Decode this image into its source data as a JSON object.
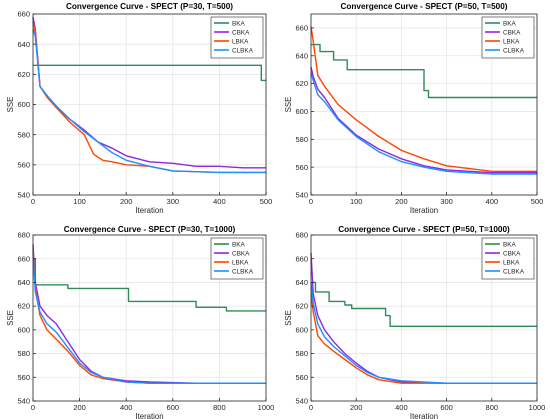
{
  "chart_data": [
    {
      "type": "line",
      "title": "Convergence Curve - SPECT (P=30, T=500)",
      "xlabel": "Iteration",
      "ylabel": "SSE",
      "xlim": [
        0,
        500
      ],
      "ylim": [
        540,
        660
      ],
      "xticks": [
        0,
        100,
        200,
        300,
        400,
        500
      ],
      "yticks": [
        540,
        560,
        580,
        600,
        620,
        640,
        660
      ],
      "grid": true,
      "legend_position": "top-right",
      "series": [
        {
          "name": "BKA",
          "color": "#2e8b57",
          "step": true,
          "x": [
            0,
            490,
            490,
            500
          ],
          "y": [
            626,
            626,
            616,
            616
          ]
        },
        {
          "name": "CBKA",
          "color": "#8a2be2",
          "step": false,
          "x": [
            0,
            5,
            15,
            30,
            50,
            80,
            110,
            140,
            170,
            200,
            250,
            300,
            350,
            400,
            450,
            500
          ],
          "y": [
            658,
            650,
            612,
            605,
            598,
            590,
            583,
            575,
            571,
            566,
            562,
            561,
            559,
            559,
            558,
            558
          ]
        },
        {
          "name": "LBKA",
          "color": "#ff4500",
          "step": false,
          "x": [
            0,
            5,
            15,
            30,
            50,
            80,
            110,
            130,
            150,
            170,
            200,
            250,
            300,
            400,
            500
          ],
          "y": [
            655,
            648,
            612,
            605,
            598,
            588,
            580,
            567,
            563,
            562,
            560,
            559,
            556,
            555,
            555
          ]
        },
        {
          "name": "CLBKA",
          "color": "#1e90ff",
          "step": false,
          "x": [
            0,
            5,
            15,
            30,
            50,
            80,
            110,
            140,
            170,
            200,
            250,
            300,
            400,
            500
          ],
          "y": [
            650,
            645,
            612,
            606,
            599,
            590,
            582,
            575,
            568,
            563,
            559,
            556,
            555,
            555
          ]
        }
      ]
    },
    {
      "type": "line",
      "title": "Convergence Curve - SPECT (P=50, T=500)",
      "xlabel": "Iteration",
      "ylabel": "SSE",
      "xlim": [
        0,
        500
      ],
      "ylim": [
        540,
        670
      ],
      "xticks": [
        0,
        100,
        200,
        300,
        400,
        500
      ],
      "yticks": [
        540,
        560,
        580,
        600,
        620,
        640,
        660
      ],
      "grid": true,
      "legend_position": "top-right",
      "series": [
        {
          "name": "BKA",
          "color": "#2e8b57",
          "step": true,
          "x": [
            0,
            20,
            20,
            50,
            50,
            80,
            80,
            250,
            250,
            260,
            260,
            500
          ],
          "y": [
            648,
            648,
            643,
            643,
            637,
            637,
            630,
            630,
            615,
            615,
            610,
            610
          ]
        },
        {
          "name": "CBKA",
          "color": "#8a2be2",
          "step": false,
          "x": [
            0,
            5,
            15,
            30,
            60,
            100,
            150,
            200,
            250,
            300,
            400,
            500
          ],
          "y": [
            632,
            625,
            616,
            610,
            595,
            583,
            573,
            566,
            561,
            558,
            556,
            556
          ]
        },
        {
          "name": "LBKA",
          "color": "#ff4500",
          "step": false,
          "x": [
            0,
            5,
            15,
            30,
            60,
            100,
            150,
            200,
            250,
            300,
            400,
            500
          ],
          "y": [
            661,
            650,
            626,
            618,
            605,
            594,
            582,
            572,
            566,
            561,
            557,
            557
          ]
        },
        {
          "name": "CLBKA",
          "color": "#1e90ff",
          "step": false,
          "x": [
            0,
            5,
            15,
            30,
            60,
            100,
            150,
            200,
            250,
            300,
            400,
            500
          ],
          "y": [
            628,
            622,
            612,
            607,
            594,
            582,
            571,
            564,
            560,
            557,
            555,
            555
          ]
        }
      ]
    },
    {
      "type": "line",
      "title": "Convergence Curve - SPECT (P=30, T=1000)",
      "xlabel": "Iteration",
      "ylabel": "SSE",
      "xlim": [
        0,
        1000
      ],
      "ylim": [
        540,
        680
      ],
      "xticks": [
        0,
        200,
        400,
        600,
        800,
        1000
      ],
      "yticks": [
        540,
        560,
        580,
        600,
        620,
        640,
        660,
        680
      ],
      "grid": true,
      "legend_position": "top-right",
      "series": [
        {
          "name": "BKA",
          "color": "#2e8b57",
          "step": true,
          "x": [
            0,
            10,
            10,
            150,
            150,
            410,
            410,
            700,
            700,
            830,
            830,
            1000
          ],
          "y": [
            660,
            660,
            638,
            638,
            635,
            635,
            624,
            624,
            619,
            619,
            616,
            616
          ]
        },
        {
          "name": "CBKA",
          "color": "#8a2be2",
          "step": false,
          "x": [
            0,
            10,
            30,
            60,
            100,
            150,
            200,
            250,
            300,
            400,
            500,
            700,
            1000
          ],
          "y": [
            672,
            640,
            620,
            612,
            605,
            590,
            575,
            565,
            560,
            557,
            556,
            555,
            555
          ]
        },
        {
          "name": "LBKA",
          "color": "#ff4500",
          "step": false,
          "x": [
            0,
            10,
            30,
            60,
            100,
            150,
            200,
            250,
            300,
            400,
            500,
            700,
            1000
          ],
          "y": [
            668,
            635,
            612,
            600,
            592,
            582,
            570,
            562,
            559,
            556,
            555,
            555,
            555
          ]
        },
        {
          "name": "CLBKA",
          "color": "#1e90ff",
          "step": false,
          "x": [
            0,
            10,
            30,
            60,
            100,
            150,
            200,
            250,
            300,
            400,
            500,
            700,
            1000
          ],
          "y": [
            665,
            632,
            615,
            605,
            598,
            585,
            572,
            564,
            560,
            556,
            555,
            555,
            555
          ]
        }
      ]
    },
    {
      "type": "line",
      "title": "Convergence Curve - SPECT (P=50, T=1000)",
      "xlabel": "Iteration",
      "ylabel": "SSE",
      "xlim": [
        0,
        1000
      ],
      "ylim": [
        540,
        680
      ],
      "xticks": [
        0,
        200,
        400,
        600,
        800,
        1000
      ],
      "yticks": [
        540,
        560,
        580,
        600,
        620,
        640,
        660,
        680
      ],
      "grid": true,
      "legend_position": "top-right",
      "series": [
        {
          "name": "BKA",
          "color": "#2e8b57",
          "step": true,
          "x": [
            0,
            20,
            20,
            80,
            80,
            150,
            150,
            180,
            180,
            330,
            330,
            350,
            350,
            1000
          ],
          "y": [
            640,
            640,
            632,
            632,
            624,
            624,
            621,
            621,
            618,
            618,
            612,
            612,
            603,
            603
          ]
        },
        {
          "name": "CBKA",
          "color": "#8a2be2",
          "step": false,
          "x": [
            0,
            10,
            30,
            60,
            100,
            150,
            200,
            250,
            300,
            400,
            600,
            1000
          ],
          "y": [
            665,
            630,
            612,
            600,
            590,
            580,
            572,
            565,
            560,
            556,
            555,
            555
          ]
        },
        {
          "name": "LBKA",
          "color": "#ff4500",
          "step": false,
          "x": [
            0,
            10,
            30,
            60,
            100,
            150,
            200,
            250,
            300,
            400,
            600,
            1000
          ],
          "y": [
            630,
            615,
            595,
            588,
            582,
            575,
            568,
            562,
            558,
            555,
            555,
            555
          ]
        },
        {
          "name": "CLBKA",
          "color": "#1e90ff",
          "step": false,
          "x": [
            0,
            10,
            30,
            60,
            100,
            150,
            200,
            250,
            300,
            400,
            600,
            1000
          ],
          "y": [
            640,
            622,
            605,
            594,
            586,
            578,
            570,
            564,
            560,
            557,
            555,
            555
          ]
        }
      ]
    }
  ]
}
